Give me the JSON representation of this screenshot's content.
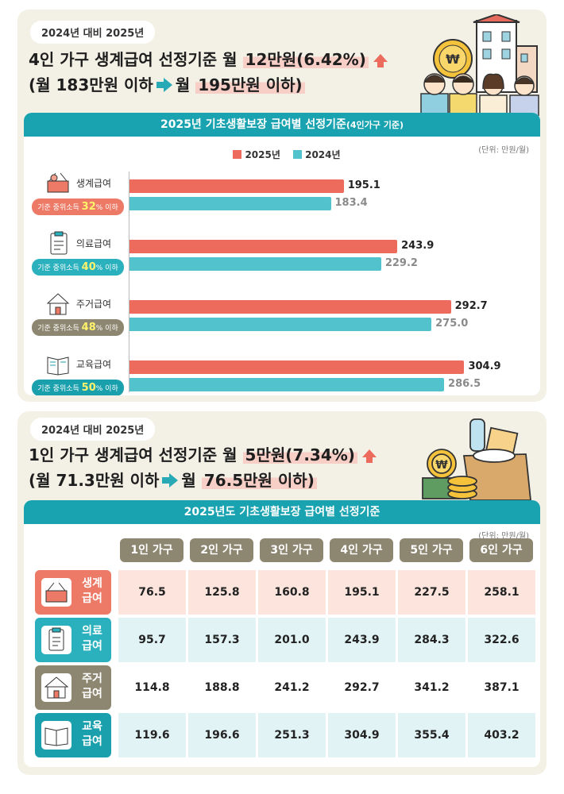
{
  "top": {
    "pill": "2024년 대비 2025년",
    "headline1_pre": "4인 가구 생계급여 선정기준 월",
    "headline1_hl": "12만원(6.42%)",
    "headline2_pre": "(월 183만원 이하",
    "headline2_mid": "월",
    "headline2_hl": "195만원 이하)"
  },
  "bottom": {
    "pill": "2024년 대비 2025년",
    "headline1_pre": "1인 가구 생계급여 선정기준 월",
    "headline1_hl": "5만원(7.34%)",
    "headline2_pre": "(월 71.3만원 이하",
    "headline2_mid": "월",
    "headline2_hl": "76.5만원 이하)"
  },
  "colors": {
    "y2025": "#ec6b5c",
    "y2024": "#52c3cd",
    "living": "#ec7a66",
    "medical": "#2ab1bd",
    "housing": "#8d8670",
    "education": "#1aa0ad"
  },
  "chart_data": [
    {
      "type": "bar",
      "title": "2025년 기초생활보장 급여별 선정기준",
      "title_note": "(4인가구 기준)",
      "unit": "(단위: 만원/월)",
      "categories": [
        "생계급여",
        "의료급여",
        "주거급여",
        "교육급여"
      ],
      "category_notes": [
        {
          "prefix": "기준 중위소득",
          "pct": "32",
          "suffix": "% 이하"
        },
        {
          "prefix": "기준 중위소득",
          "pct": "40",
          "suffix": "% 이하"
        },
        {
          "prefix": "기준 중위소득",
          "pct": "48",
          "suffix": "% 이하"
        },
        {
          "prefix": "기준 중위소득",
          "pct": "50",
          "suffix": "% 이하"
        }
      ],
      "series": [
        {
          "name": "2025년",
          "values": [
            195.1,
            243.9,
            292.7,
            304.9
          ],
          "labels": [
            "195.1",
            "243.9",
            "292.7",
            "304.9"
          ]
        },
        {
          "name": "2024년",
          "values": [
            183.4,
            229.2,
            275.0,
            286.5
          ],
          "labels": [
            "183.4",
            "229.2",
            "275.0",
            "286.5"
          ]
        }
      ],
      "xlim": [
        0,
        340
      ],
      "grid": false,
      "legend": "top-center"
    },
    {
      "type": "table",
      "title": "2025년도 기초생활보장 급여별 선정기준",
      "unit": "(단위: 만원/월)",
      "columns": [
        "1인 가구",
        "2인 가구",
        "3인 가구",
        "4인 가구",
        "5인 가구",
        "6인 가구"
      ],
      "rows": [
        {
          "label1": "생계",
          "label2": "급여",
          "values": [
            "76.5",
            "125.8",
            "160.8",
            "195.1",
            "227.5",
            "258.1"
          ]
        },
        {
          "label1": "의료",
          "label2": "급여",
          "values": [
            "95.7",
            "157.3",
            "201.0",
            "243.9",
            "284.3",
            "322.6"
          ]
        },
        {
          "label1": "주거",
          "label2": "급여",
          "values": [
            "114.8",
            "188.8",
            "241.2",
            "292.7",
            "341.2",
            "387.1"
          ]
        },
        {
          "label1": "교육",
          "label2": "급여",
          "values": [
            "119.6",
            "196.6",
            "251.3",
            "304.9",
            "355.4",
            "403.2"
          ]
        }
      ]
    }
  ]
}
